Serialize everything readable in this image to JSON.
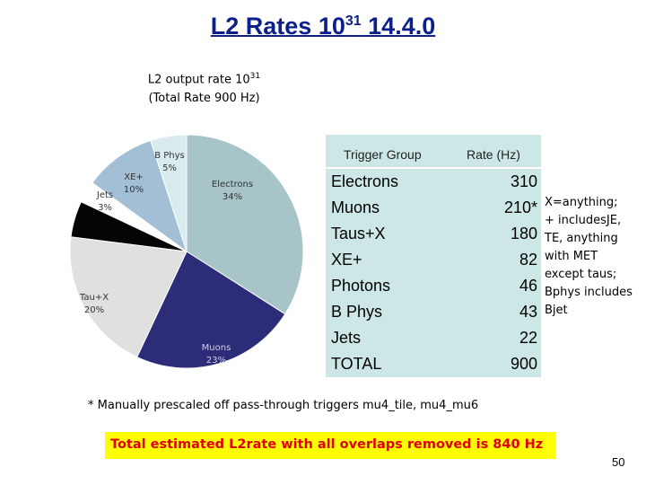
{
  "slide": {
    "title_base": "L2 Rates 10",
    "title_exp": "31",
    "title_tail": " 14.4.0",
    "page_number": "50"
  },
  "chart_data": {
    "type": "pie",
    "title_line1_base": "L2 output rate 10",
    "title_line1_exp": "31",
    "title_line2": "(Total Rate 900 Hz)",
    "slices": [
      {
        "label": "Electrons",
        "pct_label": "34%",
        "value": 34,
        "color": "#a7c4c8"
      },
      {
        "label": "Muons",
        "pct_label": "23%",
        "value": 23,
        "color": "#2d2c78"
      },
      {
        "label": "Tau+X",
        "pct_label": "20%",
        "value": 20,
        "color": "#e0e0e0"
      },
      {
        "label": "",
        "pct_label": "",
        "value": 5,
        "color": "#050505"
      },
      {
        "label": "Jets",
        "pct_label": "3%",
        "value": 3,
        "color": "#ffffff"
      },
      {
        "label": "XE+",
        "pct_label": "10%",
        "value": 10,
        "color": "#a3bfd6"
      },
      {
        "label": "B Phys",
        "pct_label": "5%",
        "value": 5,
        "color": "#d9ebee"
      }
    ]
  },
  "table": {
    "header_group": "Trigger Group",
    "header_rate": "Rate (Hz)",
    "rows": [
      {
        "group": "Electrons",
        "rate": "310"
      },
      {
        "group": "Muons",
        "rate": "210*"
      },
      {
        "group": "Taus+X",
        "rate": "180"
      },
      {
        "group": "XE+",
        "rate": "82"
      },
      {
        "group": "Photons",
        "rate": "46"
      },
      {
        "group": "B Phys",
        "rate": "43"
      },
      {
        "group": "Jets",
        "rate": "22"
      },
      {
        "group": "TOTAL",
        "rate": "900"
      }
    ]
  },
  "note_lines": [
    "X=anything;",
    "+ includesJE,",
    "TE,  anything",
    "with MET",
    "except taus;",
    "Bphys includes",
    "Bjet"
  ],
  "footnote": "* Manually prescaled off pass-through triggers mu4_tile,  mu4_mu6",
  "highlight_text": "Total estimated L2rate with all overlaps removed is  840 Hz"
}
